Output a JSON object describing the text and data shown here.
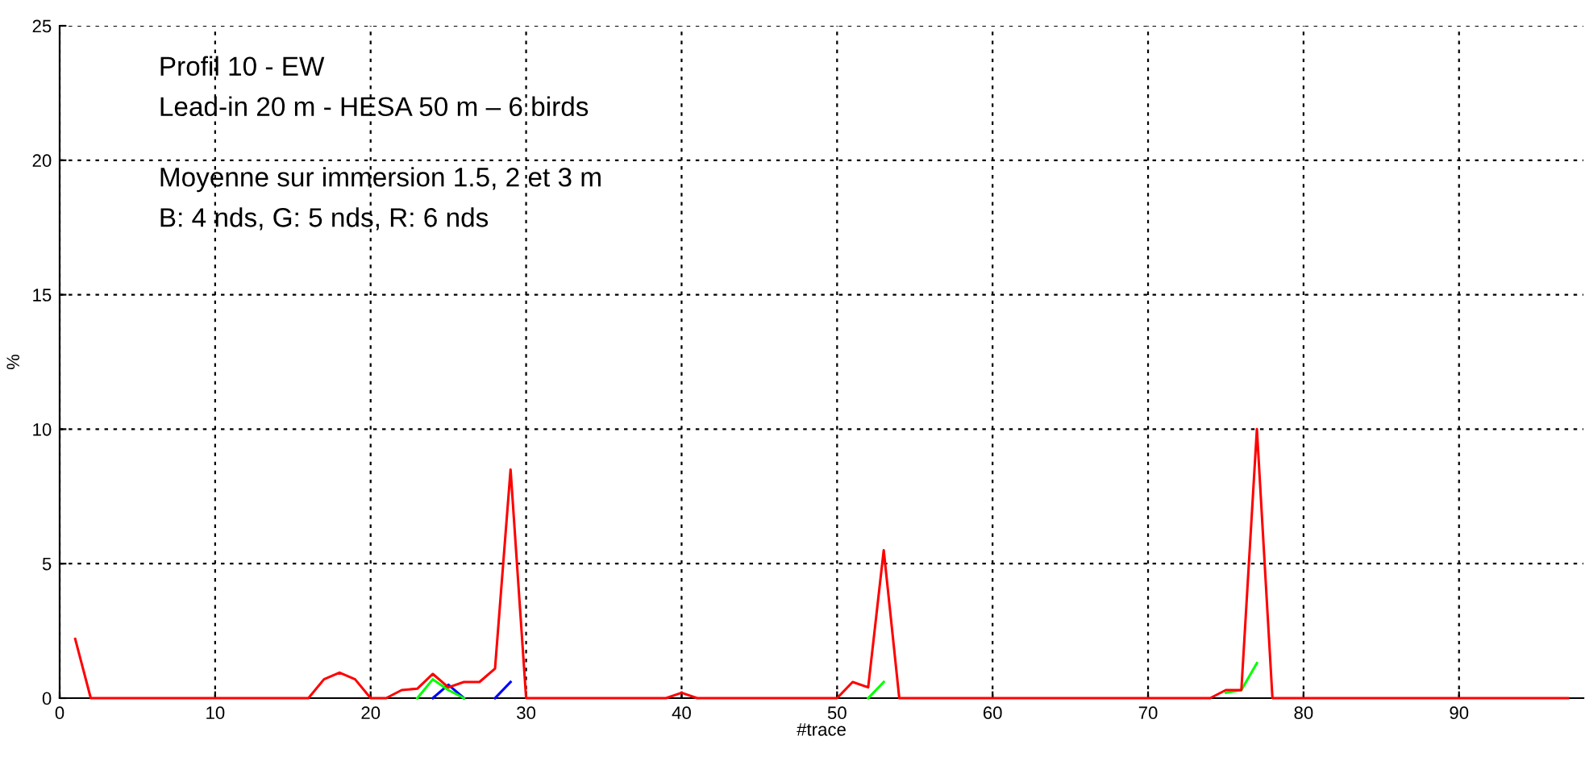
{
  "chart_data": {
    "type": "line",
    "xlabel": "#trace",
    "ylabel": "%",
    "annotations": [
      "Profil 10 - EW",
      "Lead-in 20 m - HESA 50 m – 6 birds",
      "Moyenne sur immersion 1.5, 2 et 3 m",
      "B: 4 nds, G: 5 nds, R: 6 nds"
    ],
    "x": [
      1,
      2,
      3,
      4,
      5,
      6,
      7,
      8,
      9,
      10,
      11,
      12,
      13,
      14,
      15,
      16,
      17,
      18,
      19,
      20,
      21,
      22,
      23,
      24,
      25,
      26,
      27,
      28,
      29,
      30,
      31,
      32,
      33,
      34,
      35,
      36,
      37,
      38,
      39,
      40,
      41,
      42,
      43,
      44,
      45,
      46,
      47,
      48,
      49,
      50,
      51,
      52,
      53,
      54,
      55,
      56,
      57,
      58,
      59,
      60,
      61,
      62,
      63,
      64,
      65,
      66,
      67,
      68,
      69,
      70,
      71,
      72,
      73,
      74,
      75,
      76,
      77,
      78,
      79,
      80,
      81,
      82,
      83,
      84,
      85,
      86,
      87,
      88,
      89,
      90,
      91,
      92,
      93,
      94,
      95,
      96,
      97
    ],
    "series": [
      {
        "color": "#0000ff",
        "values": [
          null,
          null,
          null,
          null,
          null,
          null,
          null,
          null,
          null,
          null,
          null,
          null,
          null,
          null,
          null,
          null,
          null,
          null,
          null,
          null,
          null,
          null,
          null,
          0,
          0.5,
          0,
          null,
          0,
          0.6,
          null,
          null,
          null,
          null,
          null,
          null,
          null,
          null,
          null,
          null,
          null,
          null,
          null,
          null,
          null,
          null,
          null,
          null,
          null,
          null,
          null,
          null,
          null,
          null,
          null,
          null,
          null,
          null,
          null,
          null,
          null,
          null,
          null,
          null,
          null,
          null,
          null,
          null,
          null,
          null,
          null,
          null,
          null,
          null,
          null,
          null,
          null,
          null,
          null,
          null,
          null,
          null,
          null,
          null,
          null,
          null,
          null,
          null,
          null,
          null,
          null,
          null,
          null,
          null,
          null,
          null,
          null,
          null
        ]
      },
      {
        "color": "#00ff00",
        "values": [
          null,
          null,
          null,
          null,
          null,
          null,
          null,
          null,
          null,
          null,
          null,
          null,
          null,
          null,
          null,
          null,
          null,
          null,
          null,
          null,
          null,
          null,
          0,
          0.7,
          0.3,
          0,
          null,
          null,
          null,
          null,
          null,
          null,
          null,
          null,
          null,
          null,
          null,
          null,
          null,
          null,
          null,
          null,
          null,
          null,
          null,
          null,
          null,
          null,
          null,
          null,
          null,
          0,
          0.6,
          null,
          null,
          null,
          null,
          null,
          null,
          null,
          null,
          null,
          null,
          null,
          null,
          null,
          null,
          null,
          null,
          null,
          null,
          null,
          null,
          null,
          0.2,
          0.3,
          1.3,
          null,
          null,
          null,
          null,
          null,
          null,
          null,
          null,
          null,
          null,
          null,
          null,
          null,
          null,
          null,
          null,
          null,
          null,
          null,
          null
        ]
      },
      {
        "color": "#ff0000",
        "values": [
          2.2,
          0,
          0,
          0,
          0,
          0,
          0,
          0,
          0,
          0,
          0,
          0,
          0,
          0,
          0,
          0,
          0.7,
          0.95,
          0.7,
          0,
          0,
          0.3,
          0.35,
          0.9,
          0.4,
          0.6,
          0.6,
          1.1,
          8.5,
          0,
          0,
          0,
          0,
          0,
          0,
          0,
          0,
          0,
          0,
          0.2,
          0,
          0,
          0,
          0,
          0,
          0,
          0,
          0,
          0,
          0,
          0.6,
          0.4,
          5.5,
          0,
          0,
          0,
          0,
          0,
          0,
          0,
          0,
          0,
          0,
          0,
          0,
          0,
          0,
          0,
          0,
          0,
          0,
          0,
          0,
          0,
          0.3,
          0.3,
          10,
          0,
          0,
          0,
          0,
          0,
          0,
          0,
          0,
          0,
          0,
          0,
          0,
          0,
          0,
          0,
          0,
          0,
          0,
          0,
          0
        ]
      }
    ],
    "xlim": [
      0,
      98
    ],
    "ylim": [
      0,
      25
    ],
    "xticks": [
      0,
      10,
      20,
      30,
      40,
      50,
      60,
      70,
      80,
      90
    ],
    "yticks": [
      0,
      5,
      10,
      15,
      20,
      25
    ],
    "grid": true,
    "marker": "none",
    "line_style": "solid"
  }
}
